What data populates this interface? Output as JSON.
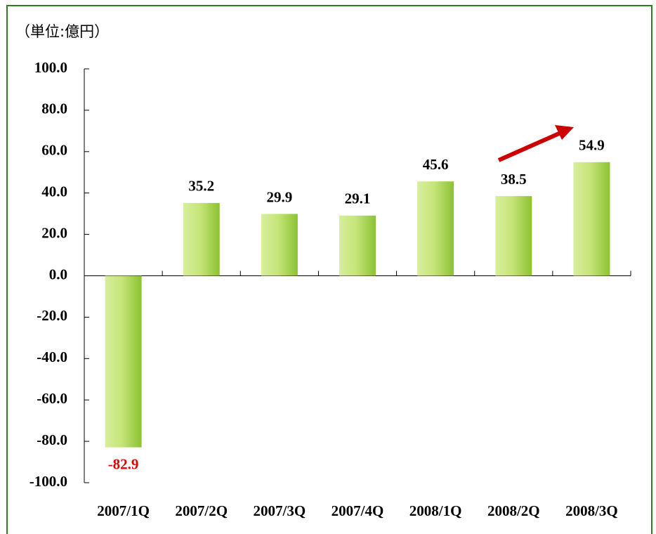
{
  "chart_data": {
    "type": "bar",
    "unit_label": "（単位:億円）",
    "categories": [
      "2007/1Q",
      "2007/2Q",
      "2007/3Q",
      "2007/4Q",
      "2008/1Q",
      "2008/2Q",
      "2008/3Q"
    ],
    "values": [
      -82.9,
      35.2,
      29.9,
      29.1,
      45.6,
      38.5,
      54.9
    ],
    "color": "#99cc33",
    "negative_label_color": "#e00000",
    "ylim": [
      -100,
      100
    ],
    "yticks": [
      {
        "value": -100,
        "label": "-100.0"
      },
      {
        "value": -80,
        "label": "-80.0"
      },
      {
        "value": -60,
        "label": "-60.0"
      },
      {
        "value": -40,
        "label": "-40.0"
      },
      {
        "value": -20,
        "label": "-20.0"
      },
      {
        "value": 0,
        "label": "0.0"
      },
      {
        "value": 20,
        "label": "20.0"
      },
      {
        "value": 40,
        "label": "40.0"
      },
      {
        "value": 60,
        "label": "60.0"
      },
      {
        "value": 80,
        "label": "80.0"
      },
      {
        "value": 100,
        "label": "100.0"
      }
    ],
    "grid": false
  }
}
